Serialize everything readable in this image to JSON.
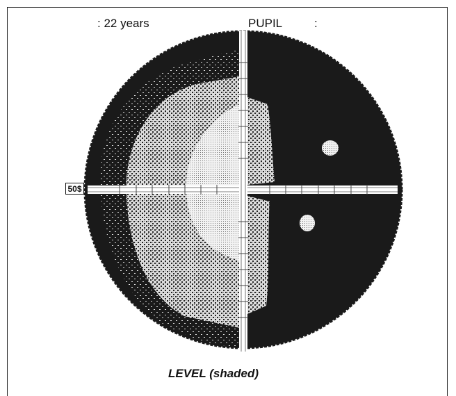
{
  "header": {
    "age_label": ":  22 years",
    "pupil_label": "PUPIL",
    "pupil_value": ":"
  },
  "scale_label": "50$",
  "caption": "LEVEL (shaded)",
  "colors": {
    "background": "#ffffff",
    "field_dark": "#1a1a1a",
    "field_light": "#e2e2e2",
    "axis": "#ffffff"
  }
}
